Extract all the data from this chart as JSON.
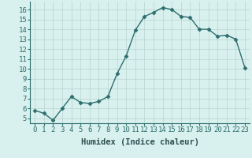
{
  "x": [
    0,
    1,
    2,
    3,
    4,
    5,
    6,
    7,
    8,
    9,
    10,
    11,
    12,
    13,
    14,
    15,
    16,
    17,
    18,
    19,
    20,
    21,
    22,
    23
  ],
  "y": [
    5.8,
    5.5,
    4.8,
    6.0,
    7.2,
    6.6,
    6.5,
    6.7,
    7.2,
    9.5,
    11.3,
    13.9,
    15.3,
    15.7,
    16.2,
    16.0,
    15.3,
    15.2,
    14.0,
    14.0,
    13.3,
    13.4,
    13.0,
    10.1
  ],
  "line_color": "#2d6e6e",
  "marker": "D",
  "marker_size": 2.5,
  "bg_color": "#d8f0ee",
  "grid_color": "#b8d4d0",
  "xlabel": "Humidex (Indice chaleur)",
  "xlim": [
    -0.5,
    23.5
  ],
  "ylim": [
    4.5,
    16.8
  ],
  "yticks": [
    5,
    6,
    7,
    8,
    9,
    10,
    11,
    12,
    13,
    14,
    15,
    16
  ],
  "xticks": [
    0,
    1,
    2,
    3,
    4,
    5,
    6,
    7,
    8,
    9,
    10,
    11,
    12,
    13,
    14,
    15,
    16,
    17,
    18,
    19,
    20,
    21,
    22,
    23
  ],
  "xlabel_fontsize": 7.5,
  "tick_fontsize": 6.5,
  "line_width": 1.0
}
